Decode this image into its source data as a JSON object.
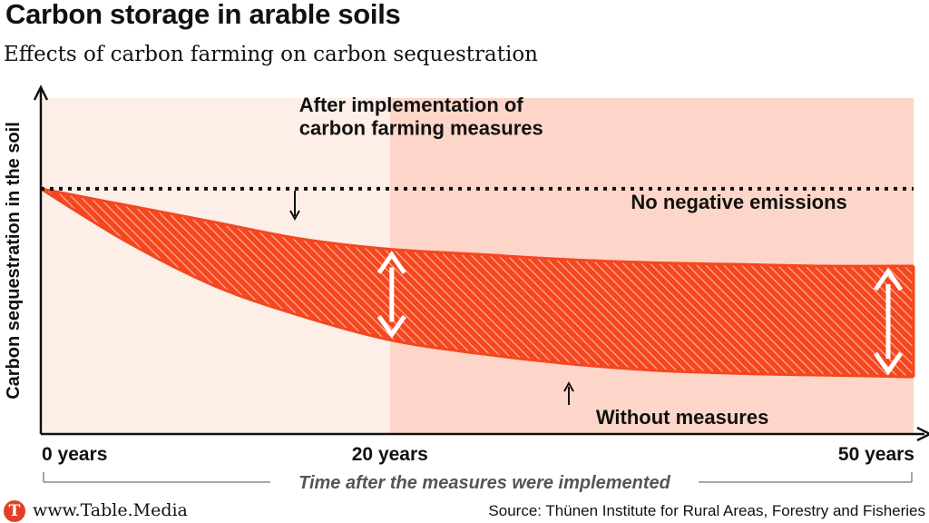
{
  "title": "Carbon storage in arable soils",
  "subtitle": "Effects of carbon farming on carbon sequestration",
  "footer": {
    "site": "www.Table.Media",
    "logo_letter": "T",
    "source": "Source: Thünen Institute for Rural Areas, Forestry and Fisheries"
  },
  "colors": {
    "bg_light": "#fdeee8",
    "bg_dark": "#fdd6c9",
    "accent": "#f5471f",
    "text": "#111111",
    "muted": "#555555"
  },
  "chart_data": {
    "type": "area",
    "title": "Carbon storage in arable soils",
    "subtitle": "Effects of carbon farming on carbon sequestration",
    "ylabel": "Carbon sequestration in the soil",
    "xlabel": "Time after the measures were implemented",
    "x_ticks": [
      {
        "value": 0,
        "label": "0 years"
      },
      {
        "value": 20,
        "label": "20 years"
      },
      {
        "value": 50,
        "label": "50 years"
      }
    ],
    "xlim": [
      0,
      50
    ],
    "ylim": [
      0,
      100
    ],
    "shaded_region_from": 20,
    "series": [
      {
        "name": "No negative emissions",
        "style": "dotted",
        "x": [
          0,
          50
        ],
        "y": [
          73,
          73
        ]
      },
      {
        "name": "After implementation of carbon farming measures",
        "style": "solid",
        "x": [
          0,
          5,
          10,
          15,
          20,
          25,
          30,
          35,
          40,
          45,
          50
        ],
        "y": [
          73,
          68,
          63,
          58,
          55,
          53.5,
          52,
          51,
          50.5,
          50,
          50
        ]
      },
      {
        "name": "Without measures",
        "style": "solid",
        "x": [
          0,
          5,
          10,
          15,
          20,
          25,
          30,
          35,
          40,
          45,
          50
        ],
        "y": [
          73,
          57,
          44,
          35,
          28,
          24,
          21,
          19,
          18,
          17.5,
          17
        ]
      }
    ],
    "annotations": [
      {
        "text": "After implementation of",
        "x": 14.8,
        "y": 96
      },
      {
        "text": "carbon farming measures",
        "x": 14.8,
        "y": 89
      },
      {
        "text": "No negative emissions",
        "x": 40,
        "y": 67
      },
      {
        "text": "Without measures",
        "x": 31.8,
        "y": 3
      }
    ],
    "grid": false,
    "legend": "none"
  }
}
